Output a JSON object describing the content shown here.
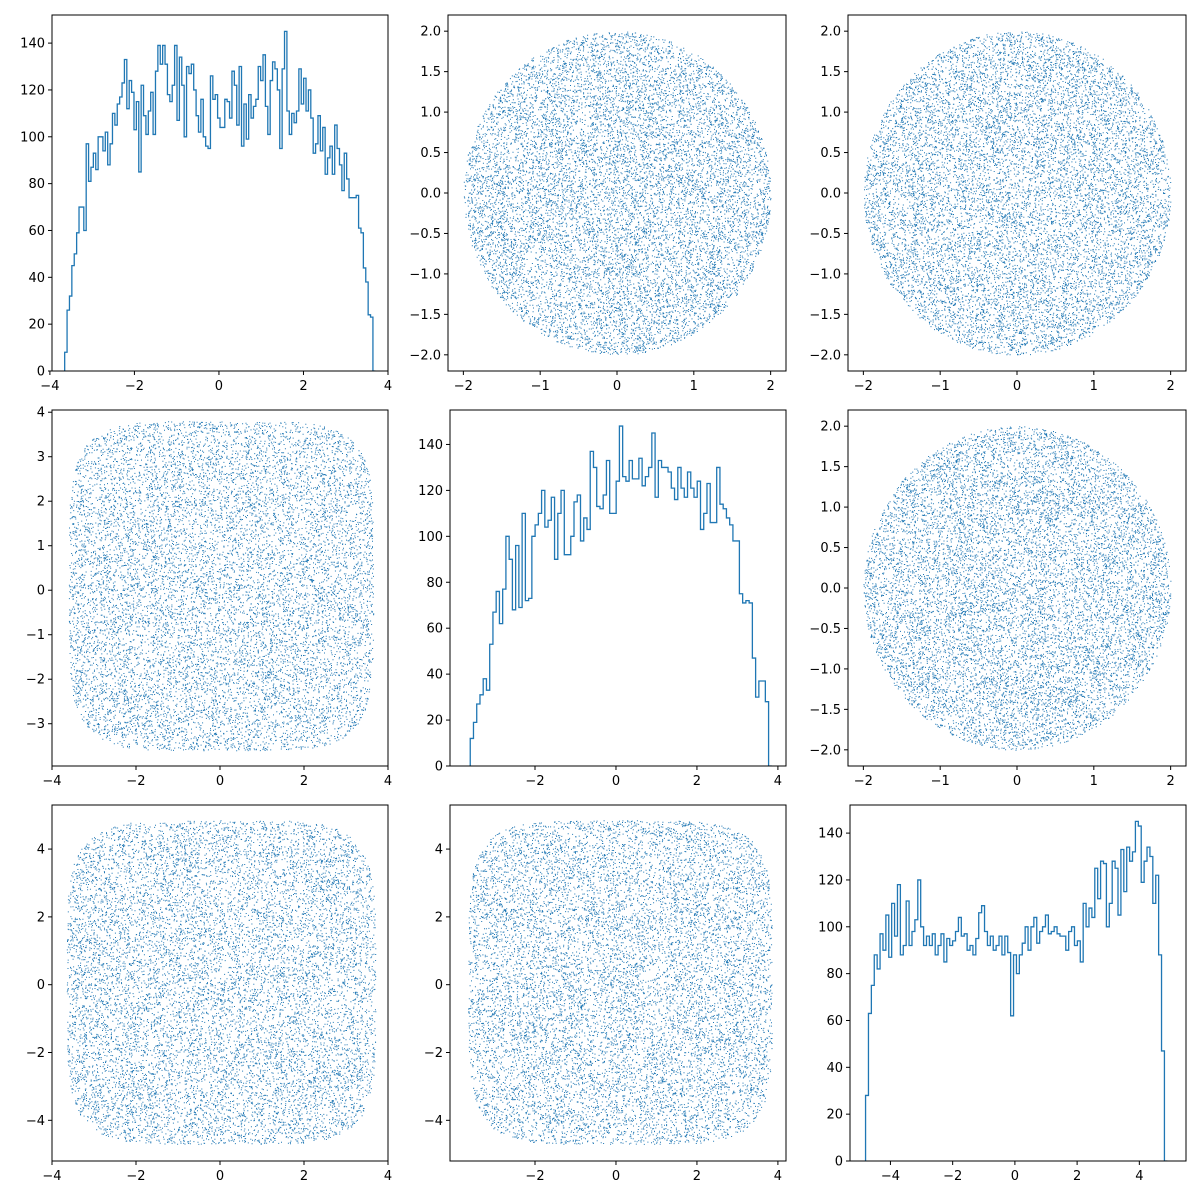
{
  "colors": {
    "series": "#1f77b4",
    "axes": "#000000",
    "background": "#ffffff"
  },
  "chart_data": [
    {
      "type": "histogram",
      "panel": "row1-col1",
      "grid": false,
      "xlim": [
        -3.95,
        4.0
      ],
      "ylim": [
        0,
        152
      ],
      "xticks": [
        -4,
        -2,
        0,
        2,
        4
      ],
      "yticks": [
        0,
        20,
        40,
        60,
        80,
        100,
        120,
        140
      ],
      "xtick_labels": [
        "−4",
        "−2",
        "0",
        "2",
        "4"
      ],
      "ytick_labels": [
        "0",
        "20",
        "40",
        "60",
        "80",
        "100",
        "120",
        "140"
      ],
      "bin_range": [
        -3.65,
        3.7
      ],
      "counts": [
        8,
        26,
        32,
        45,
        50,
        59,
        70,
        70,
        60,
        97,
        81,
        87,
        93,
        86,
        100,
        100,
        94,
        102,
        88,
        97,
        110,
        105,
        114,
        117,
        123,
        133,
        112,
        124,
        119,
        103,
        115,
        85,
        122,
        109,
        101,
        111,
        119,
        101,
        128,
        139,
        131,
        139,
        131,
        118,
        115,
        122,
        139,
        107,
        134,
        122,
        100,
        130,
        127,
        131,
        120,
        109,
        102,
        116,
        100,
        96,
        95,
        126,
        116,
        118,
        108,
        104,
        104,
        116,
        115,
        108,
        128,
        122,
        105,
        130,
        96,
        114,
        99,
        118,
        108,
        113,
        116,
        130,
        124,
        135,
        113,
        101,
        124,
        132,
        129,
        120,
        95,
        129,
        145,
        111,
        101,
        110,
        106,
        111,
        129,
        114,
        125,
        111,
        120,
        108,
        93,
        97,
        109,
        94,
        104,
        84,
        91,
        96,
        84,
        105,
        95,
        88,
        77,
        93,
        82,
        74,
        74,
        74,
        75,
        61,
        59,
        44,
        38,
        24,
        23,
        0
      ]
    },
    {
      "type": "scatter",
      "panel": "row1-col2",
      "grid": false,
      "marker": "pixel",
      "xlim": [
        -2.2,
        2.2
      ],
      "ylim": [
        -2.2,
        2.2
      ],
      "xticks": [
        -2,
        -1,
        0,
        1,
        2
      ],
      "yticks": [
        -2.0,
        -1.5,
        -1.0,
        -0.5,
        0.0,
        0.5,
        1.0,
        1.5,
        2.0
      ],
      "xtick_labels": [
        "−2",
        "−1",
        "0",
        "1",
        "2"
      ],
      "ytick_labels": [
        "−2.0",
        "−1.5",
        "−1.0",
        "−0.5",
        "0.0",
        "0.5",
        "1.0",
        "1.5",
        "2.0"
      ],
      "cloud": {
        "shape": "disk",
        "x_extent": [
          -2.0,
          2.0
        ],
        "y_extent": [
          -2.0,
          2.0
        ],
        "point_count": 12000
      }
    },
    {
      "type": "scatter",
      "panel": "row1-col3",
      "grid": false,
      "marker": "pixel",
      "xlim": [
        -2.2,
        2.2
      ],
      "ylim": [
        -2.2,
        2.2
      ],
      "xticks": [
        -2,
        -1,
        0,
        1,
        2
      ],
      "yticks": [
        -2.0,
        -1.5,
        -1.0,
        -0.5,
        0.0,
        0.5,
        1.0,
        1.5,
        2.0
      ],
      "xtick_labels": [
        "−2",
        "−1",
        "0",
        "1",
        "2"
      ],
      "ytick_labels": [
        "−2.0",
        "−1.5",
        "−1.0",
        "−0.5",
        "0.0",
        "0.5",
        "1.0",
        "1.5",
        "2.0"
      ],
      "cloud": {
        "shape": "disk",
        "x_extent": [
          -2.0,
          2.0
        ],
        "y_extent": [
          -2.0,
          2.0
        ],
        "point_count": 12000
      }
    },
    {
      "type": "scatter",
      "panel": "row2-col1",
      "grid": false,
      "marker": "pixel",
      "xlim": [
        -4.0,
        4.0
      ],
      "ylim": [
        -3.95,
        4.05
      ],
      "xticks": [
        -4,
        -2,
        0,
        2,
        4
      ],
      "yticks": [
        -3,
        -2,
        -1,
        0,
        1,
        2,
        3,
        4
      ],
      "xtick_labels": [
        "−4",
        "−2",
        "0",
        "2",
        "4"
      ],
      "ytick_labels": [
        "−3",
        "−2",
        "−1",
        "0",
        "1",
        "2",
        "3",
        "4"
      ],
      "cloud": {
        "shape": "rounded-square",
        "x_extent": [
          -3.6,
          3.65
        ],
        "y_extent": [
          -3.6,
          3.8
        ],
        "point_count": 12000
      }
    },
    {
      "type": "histogram",
      "panel": "row2-col2",
      "grid": false,
      "xlim": [
        -4.1,
        4.2
      ],
      "ylim": [
        0,
        155
      ],
      "xticks": [
        -2,
        0,
        2,
        4
      ],
      "yticks": [
        0,
        20,
        40,
        60,
        80,
        100,
        120,
        140
      ],
      "xtick_labels": [
        "−2",
        "0",
        "2",
        "4"
      ],
      "ytick_labels": [
        "0",
        "20",
        "40",
        "60",
        "80",
        "100",
        "120",
        "140"
      ],
      "bin_range": [
        -3.6,
        3.85
      ],
      "counts": [
        12,
        19,
        27,
        31,
        38,
        33,
        53,
        67,
        76,
        62,
        77,
        100,
        90,
        68,
        96,
        69,
        110,
        72,
        73,
        100,
        105,
        110,
        120,
        104,
        107,
        117,
        90,
        110,
        120,
        92,
        92,
        100,
        115,
        118,
        98,
        108,
        103,
        137,
        130,
        113,
        112,
        118,
        133,
        110,
        110,
        124,
        148,
        126,
        124,
        133,
        125,
        125,
        134,
        122,
        126,
        130,
        145,
        117,
        133,
        130,
        130,
        128,
        121,
        116,
        130,
        121,
        117,
        128,
        121,
        117,
        124,
        103,
        110,
        123,
        106,
        106,
        130,
        114,
        112,
        108,
        105,
        98,
        98,
        75,
        71,
        72,
        71,
        47,
        30,
        37,
        37,
        28,
        0
      ]
    },
    {
      "type": "scatter",
      "panel": "row2-col3",
      "grid": false,
      "marker": "pixel",
      "xlim": [
        -2.2,
        2.2
      ],
      "ylim": [
        -2.2,
        2.2
      ],
      "xticks": [
        -2,
        -1,
        0,
        1,
        2
      ],
      "yticks": [
        -2.0,
        -1.5,
        -1.0,
        -0.5,
        0.0,
        0.5,
        1.0,
        1.5,
        2.0
      ],
      "xtick_labels": [
        "−2",
        "−1",
        "0",
        "1",
        "2"
      ],
      "ytick_labels": [
        "−2.0",
        "−1.5",
        "−1.0",
        "−0.5",
        "0.0",
        "0.5",
        "1.0",
        "1.5",
        "2.0"
      ],
      "cloud": {
        "shape": "disk",
        "x_extent": [
          -2.0,
          2.0
        ],
        "y_extent": [
          -2.0,
          2.0
        ],
        "point_count": 12000
      }
    },
    {
      "type": "scatter",
      "panel": "row3-col1",
      "grid": false,
      "marker": "pixel",
      "xlim": [
        -4.0,
        4.0
      ],
      "ylim": [
        -5.2,
        5.3
      ],
      "xticks": [
        -4,
        -2,
        0,
        2,
        4
      ],
      "yticks": [
        -4,
        -2,
        0,
        2,
        4
      ],
      "xtick_labels": [
        "−4",
        "−2",
        "0",
        "2",
        "4"
      ],
      "ytick_labels": [
        "−4",
        "−2",
        "0",
        "2",
        "4"
      ],
      "cloud": {
        "shape": "rounded-square",
        "x_extent": [
          -3.65,
          3.7
        ],
        "y_extent": [
          -4.7,
          4.85
        ],
        "point_count": 12000
      }
    },
    {
      "type": "scatter",
      "panel": "row3-col2",
      "grid": false,
      "marker": "pixel",
      "xlim": [
        -4.1,
        4.2
      ],
      "ylim": [
        -5.2,
        5.3
      ],
      "xticks": [
        -2,
        0,
        2,
        4
      ],
      "yticks": [
        -4,
        -2,
        0,
        2,
        4
      ],
      "xtick_labels": [
        "−2",
        "0",
        "2",
        "4"
      ],
      "ytick_labels": [
        "−4",
        "−2",
        "0",
        "2",
        "4"
      ],
      "cloud": {
        "shape": "rounded-square",
        "x_extent": [
          -3.65,
          3.85
        ],
        "y_extent": [
          -4.7,
          4.85
        ],
        "point_count": 12000
      }
    },
    {
      "type": "histogram",
      "panel": "row3-col3",
      "grid": false,
      "xlim": [
        -5.3,
        5.5
      ],
      "ylim": [
        0,
        152
      ],
      "xticks": [
        -4,
        -2,
        0,
        2,
        4
      ],
      "yticks": [
        0,
        20,
        40,
        60,
        80,
        100,
        120,
        140
      ],
      "xtick_labels": [
        "−4",
        "−2",
        "0",
        "2",
        "4"
      ],
      "ytick_labels": [
        "0",
        "20",
        "40",
        "60",
        "80",
        "100",
        "120",
        "140"
      ],
      "bin_range": [
        -4.8,
        4.9
      ],
      "counts": [
        28,
        63,
        75,
        88,
        82,
        97,
        90,
        105,
        87,
        110,
        96,
        118,
        88,
        92,
        111,
        92,
        98,
        103,
        120,
        100,
        92,
        96,
        92,
        97,
        88,
        92,
        97,
        85,
        95,
        92,
        94,
        98,
        104,
        96,
        97,
        90,
        92,
        88,
        95,
        106,
        109,
        98,
        92,
        96,
        90,
        92,
        96,
        88,
        96,
        89,
        62,
        88,
        80,
        88,
        93,
        100,
        90,
        100,
        104,
        93,
        98,
        100,
        105,
        97,
        98,
        100,
        97,
        96,
        96,
        90,
        98,
        100,
        92,
        94,
        85,
        110,
        100,
        108,
        104,
        125,
        112,
        128,
        127,
        100,
        110,
        128,
        125,
        105,
        133,
        115,
        134,
        128,
        132,
        145,
        143,
        119,
        128,
        134,
        130,
        110,
        122,
        88,
        47,
        0
      ]
    }
  ]
}
